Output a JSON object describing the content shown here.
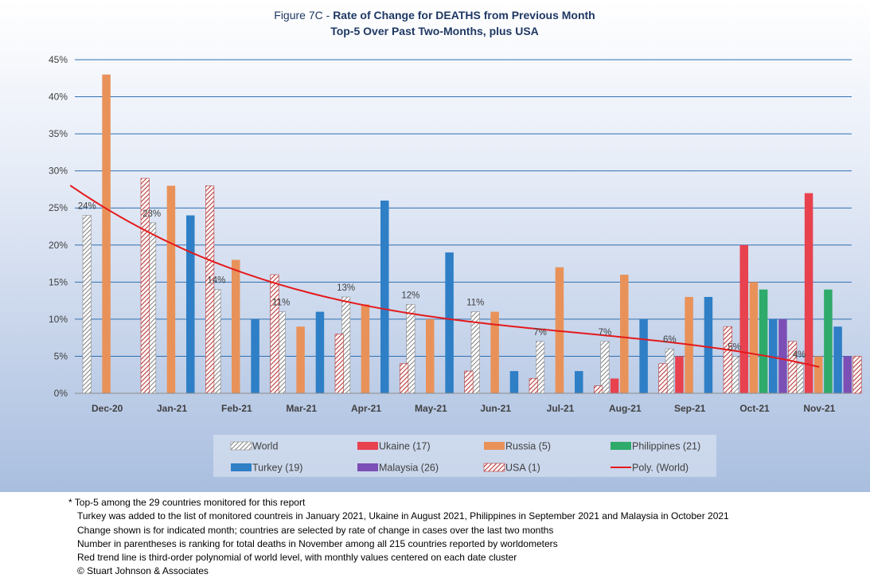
{
  "chart_data": {
    "type": "bar",
    "title_prefix": "Figure 7C - ",
    "title_bold": "Rate of Change for DEATHS from Previous Month",
    "subtitle": "Top-5 Over Past Two-Months, plus USA",
    "categories": [
      "Dec-20",
      "Jan-21",
      "Feb-21",
      "Mar-21",
      "Apr-21",
      "May-21",
      "Jun-21",
      "Jul-21",
      "Aug-21",
      "Sep-21",
      "Oct-21",
      "Nov-21"
    ],
    "y_ticks": [
      "0%",
      "5%",
      "10%",
      "15%",
      "20%",
      "25%",
      "30%",
      "35%",
      "40%",
      "45%"
    ],
    "ylim": [
      0,
      45
    ],
    "grid": true,
    "legend_position": "bottom",
    "series": [
      {
        "name": "World",
        "color": "#a6a6a6",
        "pattern": "hatch-gray",
        "values": [
          24,
          23,
          14,
          11,
          13,
          12,
          11,
          7,
          7,
          6,
          5,
          4
        ],
        "labels": [
          "24%",
          "23%",
          "14%",
          "11%",
          "13%",
          "12%",
          "11%",
          "7%",
          "7%",
          "6%",
          "5%",
          "4%"
        ]
      },
      {
        "name": "Ukaine (17)",
        "color": "#e8424f",
        "pattern": "solid",
        "values": [
          null,
          null,
          null,
          null,
          null,
          null,
          null,
          null,
          2,
          5,
          20,
          27
        ]
      },
      {
        "name": "Russia (5)",
        "color": "#e8925a",
        "pattern": "solid",
        "values": [
          43,
          28,
          18,
          9,
          12,
          10,
          11,
          17,
          16,
          13,
          15,
          5
        ]
      },
      {
        "name": "Philippines (21)",
        "color": "#2eaa6a",
        "pattern": "solid",
        "values": [
          null,
          null,
          null,
          null,
          null,
          null,
          null,
          null,
          null,
          null,
          14,
          14
        ]
      },
      {
        "name": "Turkey (19)",
        "color": "#2e7fc6",
        "pattern": "solid",
        "values": [
          null,
          24,
          10,
          11,
          26,
          19,
          3,
          3,
          10,
          13,
          10,
          9
        ]
      },
      {
        "name": "Malaysia (26)",
        "color": "#7b4fb5",
        "pattern": "solid",
        "values": [
          null,
          null,
          null,
          null,
          null,
          null,
          null,
          null,
          null,
          null,
          10,
          5
        ]
      },
      {
        "name": "USA (1)",
        "color": "#b73a3a",
        "pattern": "hatch-red",
        "values": [
          29,
          28,
          16,
          8,
          4,
          3,
          2,
          1,
          4,
          9,
          7,
          5
        ]
      }
    ],
    "trendline": {
      "name": "Poly. (World)",
      "type": "polynomial order 3",
      "color": "#e41a1c"
    },
    "legend_order": [
      "World",
      "Ukaine (17)",
      "Russia (5)",
      "Philippines (21)",
      "Turkey (19)",
      "Malaysia (26)",
      "USA (1)",
      "Poly. (World)"
    ]
  },
  "footnotes": {
    "line1": "* Top-5 among the 29 countries monitored for this report",
    "line2": "Turkey was added to the list of monitored countreis in January 2021, Ukaine in August 2021, Philippines in September 2021 and Malaysia in October 2021",
    "line3": "Change shown is for indicated month; countries are selected by rate of change in cases over the last two months",
    "line4": "Number in parentheses is ranking for total deaths in November among all 215 countries reported by worldometers",
    "line5": "Red trend line is third-order polynomial of world level, with monthly values centered on each date cluster",
    "line6": "© Stuart Johnson & Associates"
  }
}
